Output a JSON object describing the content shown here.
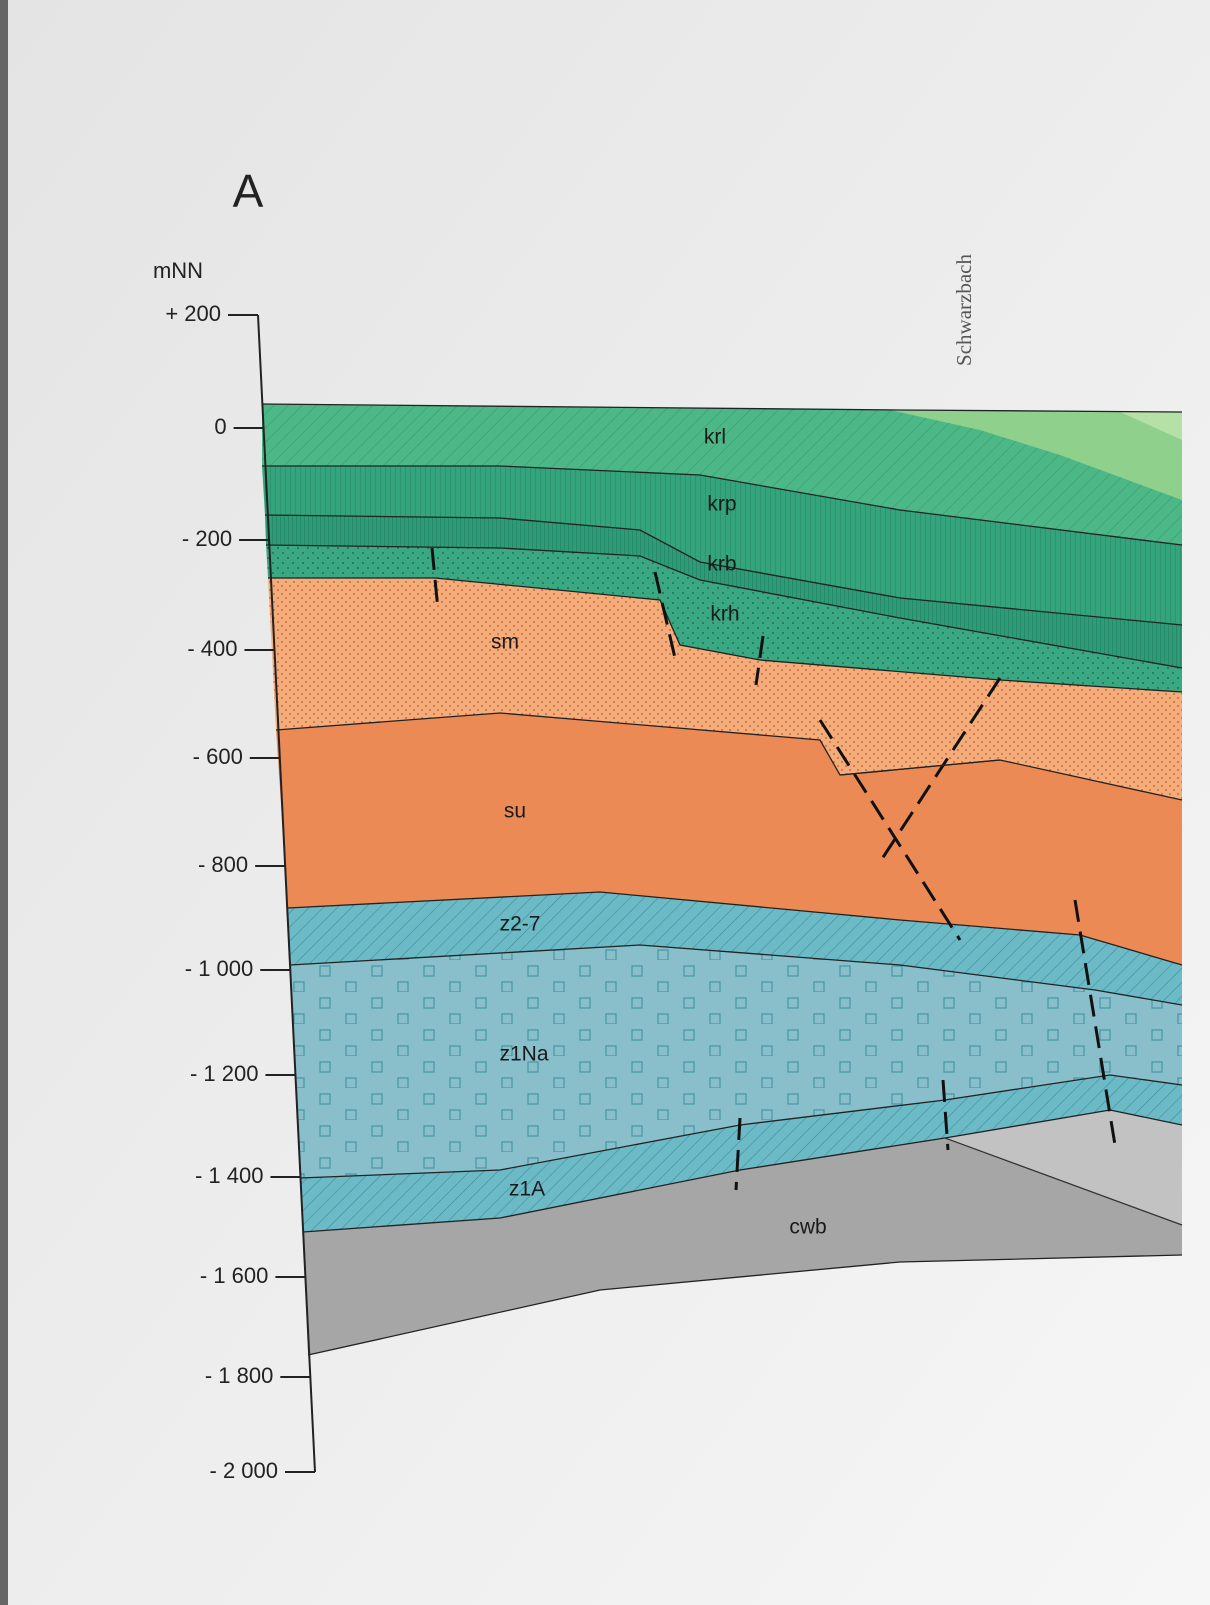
{
  "title": "A",
  "axis": {
    "unit": "mNN",
    "ticks": [
      "+ 200",
      "0",
      "- 200",
      "- 400",
      "- 600",
      "- 800",
      "- 1 000",
      "- 1 200",
      "- 1 400",
      "- 1 600",
      "- 1 800",
      "- 2 000"
    ]
  },
  "river": "Schwarzbach",
  "layers": [
    {
      "label": "krl"
    },
    {
      "label": "krp"
    },
    {
      "label": "krb"
    },
    {
      "label": "krh"
    },
    {
      "label": "sm"
    },
    {
      "label": "su"
    },
    {
      "label": "z2-7"
    },
    {
      "label": "z1Na"
    },
    {
      "label": "z1A"
    },
    {
      "label": "cwb"
    }
  ]
}
